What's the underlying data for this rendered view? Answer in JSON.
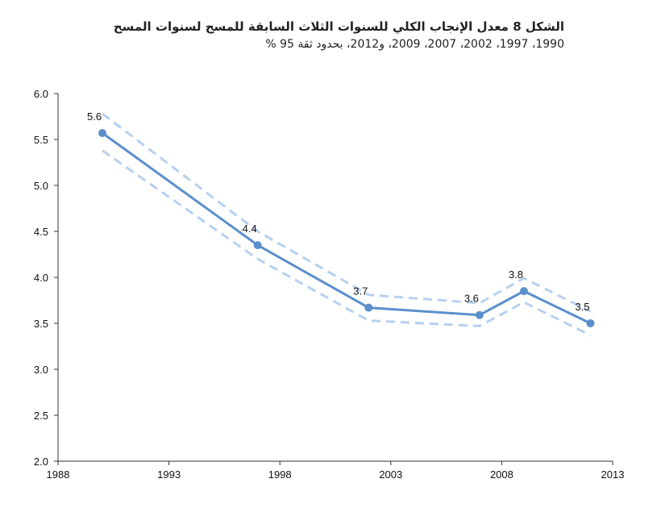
{
  "chart_data": {
    "type": "line",
    "title": "الشكل 8 معدل الإنجاب الكلي للسنوات الثلاث السابقة للمسح لسنوات المسح",
    "subtitle": "1990، 1997، 2002، 2007، 2009، و2012، بحدود ثقة 95 %",
    "xlabel": "",
    "ylabel": "",
    "xlim": [
      1988,
      2013
    ],
    "ylim": [
      2.0,
      6.0
    ],
    "xticks": [
      "1988",
      "1993",
      "1998",
      "2003",
      "2008",
      "2013"
    ],
    "yticks": [
      "6.0",
      "5.5",
      "5.0",
      "4.5",
      "4.0",
      "3.5",
      "3.0",
      "2.5",
      "2.0"
    ],
    "grid": false,
    "legend": "none",
    "colors": {
      "main": "#5b8fcc",
      "ci": "#b7d0ee",
      "axis": "#333333"
    },
    "x": [
      1990,
      1997,
      2002,
      2007,
      2009,
      2012
    ],
    "series": [
      {
        "values": [
          5.57,
          4.35,
          3.67,
          3.59,
          3.85,
          3.5
        ]
      },
      {
        "values": [
          5.78,
          4.5,
          3.81,
          3.72,
          3.99,
          3.63
        ]
      },
      {
        "values": [
          5.38,
          4.2,
          3.53,
          3.47,
          3.73,
          3.37
        ]
      }
    ],
    "data_labels": [
      "5.6",
      "4.4",
      "3.7",
      "3.6",
      "3.8",
      "3.5"
    ]
  }
}
